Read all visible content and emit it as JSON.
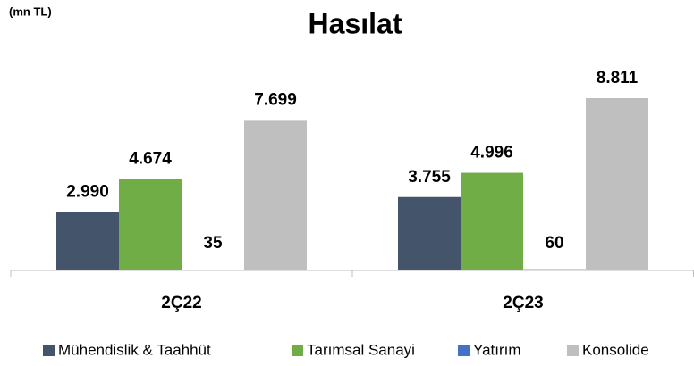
{
  "chart_data": {
    "type": "bar",
    "title": "Hasılat",
    "subtitle": "(mn TL)",
    "categories": [
      "2Ç22",
      "2Ç23"
    ],
    "series": [
      {
        "name": "Mühendislik & Taahhüt",
        "color": "#44546a",
        "values": [
          2990,
          3755
        ],
        "value_labels": [
          "2.990",
          "3.755"
        ]
      },
      {
        "name": "Tarımsal Sanayi",
        "color": "#70ad47",
        "values": [
          4674,
          4996
        ],
        "value_labels": [
          "4.674",
          "4.996"
        ]
      },
      {
        "name": "Yatırım",
        "color": "#4472c4",
        "values": [
          35,
          60
        ],
        "value_labels": [
          "35",
          "60"
        ]
      },
      {
        "name": "Konsolide",
        "color": "#bfbfbf",
        "values": [
          7699,
          8811
        ],
        "value_labels": [
          "7.699",
          "8.811"
        ]
      }
    ],
    "legend": "bottom"
  }
}
